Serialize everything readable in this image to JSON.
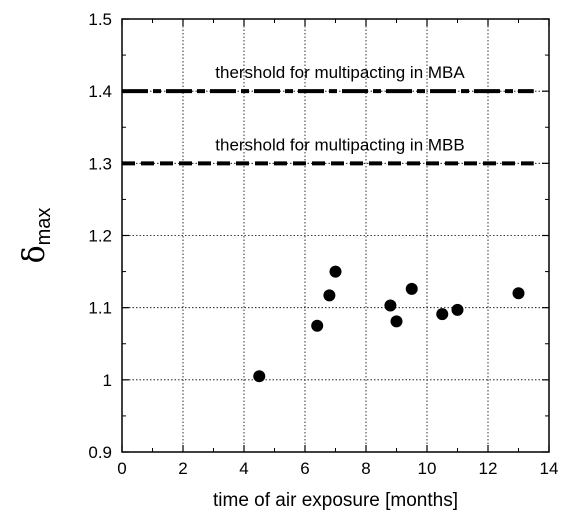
{
  "chart_data": {
    "type": "scatter",
    "title": "",
    "xlabel": "time of air exposure [months]",
    "ylabel": {
      "symbol": "δ",
      "subscript": "max"
    },
    "xlim": [
      0,
      14
    ],
    "ylim": [
      0.9,
      1.5
    ],
    "xticks": [
      {
        "value": 0,
        "label": "0"
      },
      {
        "value": 2,
        "label": "2"
      },
      {
        "value": 4,
        "label": "4"
      },
      {
        "value": 6,
        "label": "6"
      },
      {
        "value": 8,
        "label": "8"
      },
      {
        "value": 10,
        "label": "10"
      },
      {
        "value": 12,
        "label": "12"
      },
      {
        "value": 14,
        "label": "14"
      }
    ],
    "yticks": [
      {
        "value": 0.9,
        "label": "0.9"
      },
      {
        "value": 1.0,
        "label": "1"
      },
      {
        "value": 1.1,
        "label": "1.1"
      },
      {
        "value": 1.2,
        "label": "1.2"
      },
      {
        "value": 1.3,
        "label": "1.3"
      },
      {
        "value": 1.4,
        "label": "1.4"
      },
      {
        "value": 1.5,
        "label": "1.5"
      }
    ],
    "grid": true,
    "points": [
      {
        "x": 4.5,
        "y": 1.005
      },
      {
        "x": 6.4,
        "y": 1.075
      },
      {
        "x": 6.8,
        "y": 1.117
      },
      {
        "x": 7.0,
        "y": 1.15
      },
      {
        "x": 8.8,
        "y": 1.103
      },
      {
        "x": 9.0,
        "y": 1.081
      },
      {
        "x": 9.5,
        "y": 1.126
      },
      {
        "x": 10.5,
        "y": 1.091
      },
      {
        "x": 11.0,
        "y": 1.097
      },
      {
        "x": 13.0,
        "y": 1.12
      }
    ],
    "thresholds": [
      {
        "label": "thershold for multipacting in MBA",
        "y": 1.4,
        "x_range": [
          0,
          13.5
        ],
        "style": "dash-dot"
      },
      {
        "label": "thershold for multipacting in MBB",
        "y": 1.3,
        "x_range": [
          0,
          13.5
        ],
        "style": "dashed"
      }
    ]
  }
}
